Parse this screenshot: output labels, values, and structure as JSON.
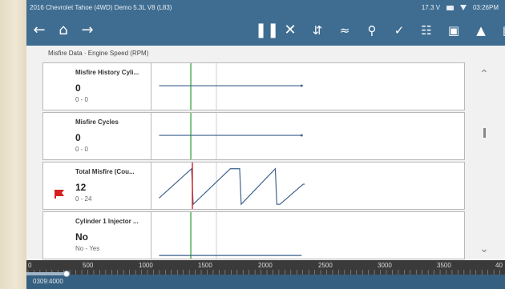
{
  "statusbar": {
    "title": "2016 Chevrolet Tahoe (4WD) Demo 5.3L V8 (L83)",
    "voltage": "17.3 V",
    "time": "03:26PM"
  },
  "toolbar": {
    "back_icon": "arrow-left-icon",
    "home_icon": "home-icon",
    "forward_icon": "arrow-right-icon",
    "tools": [
      "pause-icon",
      "close-icon",
      "expand-icon",
      "graph-icon",
      "zoom-icon",
      "edit-icon",
      "settings-icon",
      "lock-icon",
      "bell-icon",
      "save-icon",
      "gear-icon"
    ]
  },
  "breadcrumb": "Misfire Data · Engine Speed (RPM)",
  "rows": [
    {
      "name": "Misfire History Cyli...",
      "value": "0",
      "range": "0 - 0",
      "flag": false,
      "graph": "flat"
    },
    {
      "name": "Misfire Cycles",
      "value": "0",
      "range": "0 - 0",
      "flag": false,
      "graph": "flat"
    },
    {
      "name": "Total Misfire (Cou...",
      "value": "12",
      "range": "0 - 24",
      "flag": true,
      "graph": "sawtooth"
    },
    {
      "name": "Cylinder 1 Injector ...",
      "value": "No",
      "range": "No - Yes",
      "flag": false,
      "graph": "flat-low"
    }
  ],
  "axis": {
    "ticks": [
      "0",
      "500",
      "1000",
      "1500",
      "2000",
      "2500",
      "3000",
      "3500",
      "40"
    ]
  },
  "footer": {
    "position": "0309:4000"
  },
  "colors": {
    "header": "#3f6d91",
    "trace": "#3a5f8a",
    "cursor_green": "#4cae4c",
    "cursor_red": "#d62b2b",
    "flag": "#d62020"
  }
}
